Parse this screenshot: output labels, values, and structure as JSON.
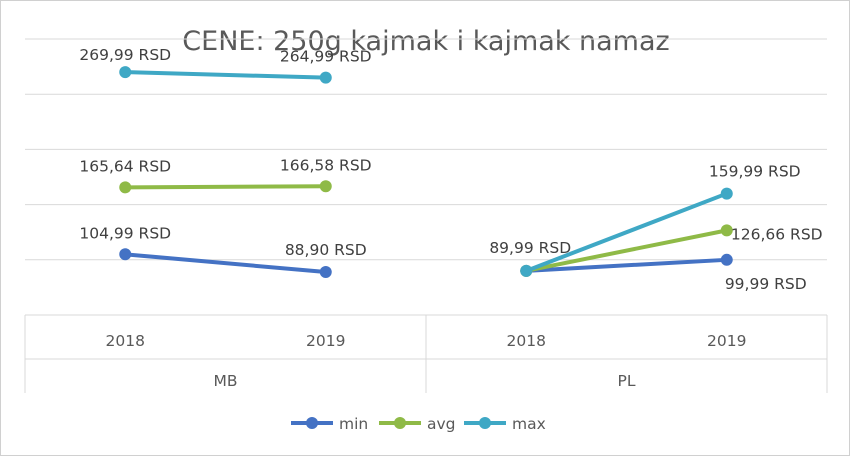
{
  "chart_data": {
    "type": "line",
    "title": "CENE: 250g kajmak i kajmak namaz",
    "groups": [
      {
        "name": "MB",
        "categories": [
          "2018",
          "2019"
        ],
        "series": [
          {
            "name": "min",
            "values": [
              104.99,
              88.9
            ],
            "labels": [
              "104,99 RSD",
              "88,90 RSD"
            ]
          },
          {
            "name": "avg",
            "values": [
              165.64,
              166.58
            ],
            "labels": [
              "165,64 RSD",
              "166,58 RSD"
            ]
          },
          {
            "name": "max",
            "values": [
              269.99,
              264.99
            ],
            "labels": [
              "269,99 RSD",
              "264,99 RSD"
            ]
          }
        ]
      },
      {
        "name": "PL",
        "categories": [
          "2018",
          "2019"
        ],
        "series": [
          {
            "name": "min",
            "values": [
              89.99,
              99.99
            ],
            "labels": [
              "",
              "99,99 RSD"
            ]
          },
          {
            "name": "avg",
            "values": [
              89.99,
              126.66
            ],
            "labels": [
              "",
              "126,66 RSD"
            ]
          },
          {
            "name": "max",
            "values": [
              89.99,
              159.99
            ],
            "labels": [
              "89,99 RSD",
              "159,99 RSD"
            ]
          }
        ]
      }
    ],
    "legend": [
      "min",
      "avg",
      "max"
    ],
    "legend_position": "bottom",
    "colors": {
      "min": "#4472c4",
      "avg": "#8fba47",
      "max": "#3fa8c5"
    },
    "ylim": [
      50,
      300
    ],
    "grid": true
  }
}
